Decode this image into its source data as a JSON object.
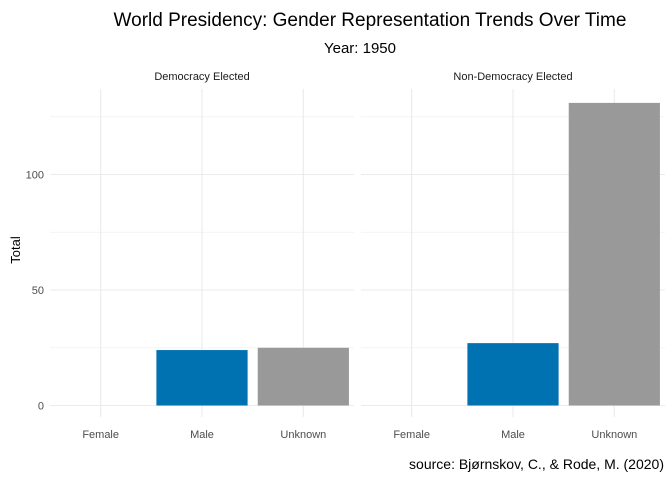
{
  "chart_data": {
    "type": "bar",
    "title": "World Presidency: Gender Representation Trends Over Time",
    "subtitle": "Year: 1950",
    "ylabel": "Total",
    "caption": "source: Bjørnskov, C., & Rode, M. (2020)",
    "ylim": [
      0,
      132
    ],
    "yticks": [
      0,
      50,
      100
    ],
    "categories": [
      "Female",
      "Male",
      "Unknown"
    ],
    "colors": {
      "Female": "#f8766d",
      "Male": "#0072b2",
      "Unknown": "#999999"
    },
    "grid": true,
    "panels": [
      {
        "name": "Democracy Elected",
        "values": [
          0,
          24,
          25
        ]
      },
      {
        "name": "Non-Democracy Elected",
        "values": [
          0,
          27,
          131
        ]
      }
    ]
  }
}
